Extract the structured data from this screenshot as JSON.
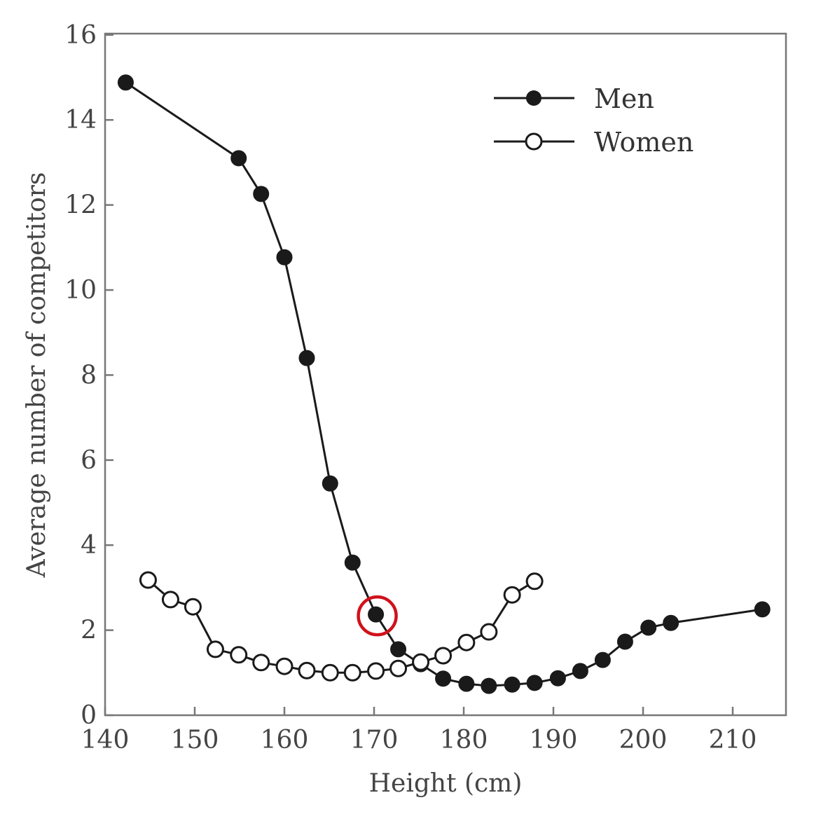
{
  "chart_data": {
    "type": "line",
    "title": "",
    "xlabel": "Height (cm)",
    "ylabel": "Average number of competitors",
    "xlim": [
      140,
      216
    ],
    "ylim": [
      0,
      16
    ],
    "xticks": [
      140,
      150,
      160,
      170,
      180,
      190,
      200,
      210
    ],
    "yticks": [
      0,
      2,
      4,
      6,
      8,
      10,
      12,
      14,
      16
    ],
    "grid": false,
    "legend_position": "top-right",
    "series": [
      {
        "name": "Men",
        "marker": "filled-circle",
        "color": "#1a1a1a",
        "x": [
          142.3,
          154.9,
          157.4,
          160.0,
          162.5,
          165.1,
          167.6,
          170.2,
          172.7,
          175.2,
          177.7,
          180.3,
          182.8,
          185.4,
          187.9,
          190.5,
          193.0,
          195.5,
          198.0,
          200.6,
          203.1,
          213.3
        ],
        "y": [
          14.88,
          13.1,
          12.26,
          10.77,
          8.4,
          5.45,
          3.59,
          2.37,
          1.55,
          1.2,
          0.86,
          0.74,
          0.69,
          0.72,
          0.76,
          0.87,
          1.04,
          1.3,
          1.73,
          2.06,
          2.17,
          2.49
        ]
      },
      {
        "name": "Women",
        "marker": "open-circle",
        "color": "#1a1a1a",
        "x": [
          144.8,
          147.3,
          149.8,
          152.3,
          154.9,
          157.4,
          160.0,
          162.5,
          165.1,
          167.6,
          170.2,
          172.7,
          175.2,
          177.7,
          180.3,
          182.8,
          185.4,
          187.9
        ],
        "y": [
          3.18,
          2.72,
          2.55,
          1.55,
          1.42,
          1.24,
          1.15,
          1.05,
          1.0,
          1.0,
          1.04,
          1.1,
          1.25,
          1.4,
          1.71,
          1.96,
          2.83,
          3.15
        ]
      }
    ],
    "annotations": [
      {
        "type": "highlight-circle",
        "color": "#d0121b",
        "x": 170.2,
        "y": 2.37
      }
    ]
  }
}
